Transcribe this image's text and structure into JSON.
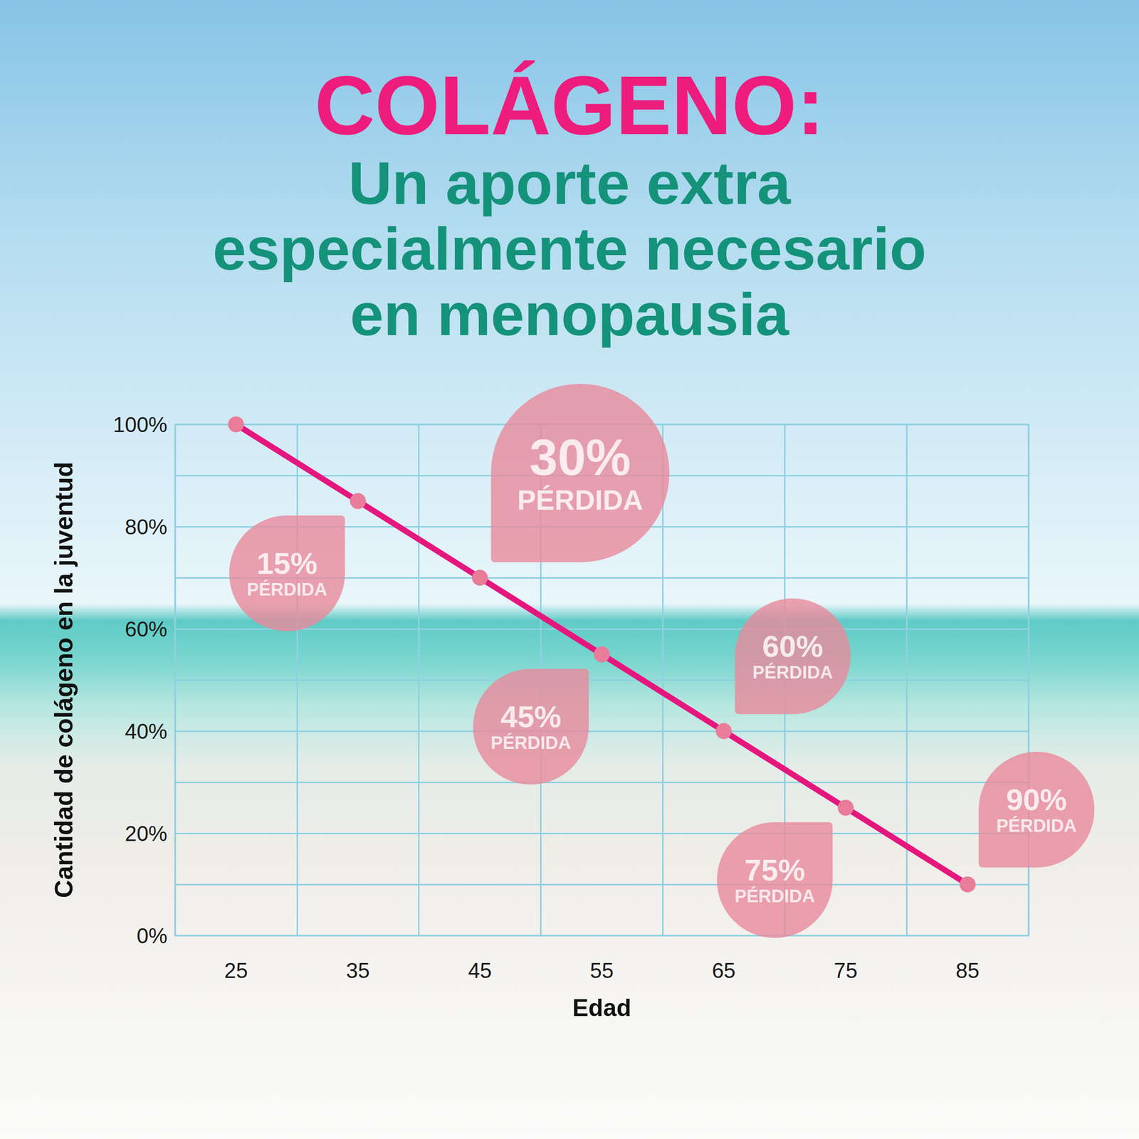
{
  "chart_data": {
    "type": "line",
    "title": "COLÁGENO:",
    "subtitle": "Un aporte extra especialmente necesario en menopausia",
    "x_label": "Edad",
    "y_label": "Cantidad de colágeno en la juventud",
    "categories": [
      "25",
      "35",
      "45",
      "55",
      "65",
      "75",
      "85"
    ],
    "values": [
      100,
      85,
      70,
      55,
      40,
      25,
      10
    ],
    "color": "#e5177e",
    "marker": "circle",
    "ylim": [
      0,
      100
    ],
    "yticks": [
      {
        "value": 0,
        "label": "0%"
      },
      {
        "value": 20,
        "label": "20%"
      },
      {
        "value": 40,
        "label": "40%"
      },
      {
        "value": 60,
        "label": "60%"
      },
      {
        "value": 80,
        "label": "80%"
      },
      {
        "value": 100,
        "label": "100%"
      }
    ],
    "grid": true,
    "annotations": [
      {
        "x": "35",
        "text": [
          "15%",
          "PÉRDIDA"
        ]
      },
      {
        "x": "45",
        "text": [
          "30%",
          "PÉRDIDA"
        ]
      },
      {
        "x": "55",
        "text": [
          "45%",
          "PÉRDIDA"
        ]
      },
      {
        "x": "65",
        "text": [
          "60%",
          "PÉRDIDA"
        ]
      },
      {
        "x": "75",
        "text": [
          "75%",
          "PÉRDIDA"
        ]
      },
      {
        "x": "85",
        "text": [
          "90%",
          "PÉRDIDA"
        ]
      }
    ]
  }
}
